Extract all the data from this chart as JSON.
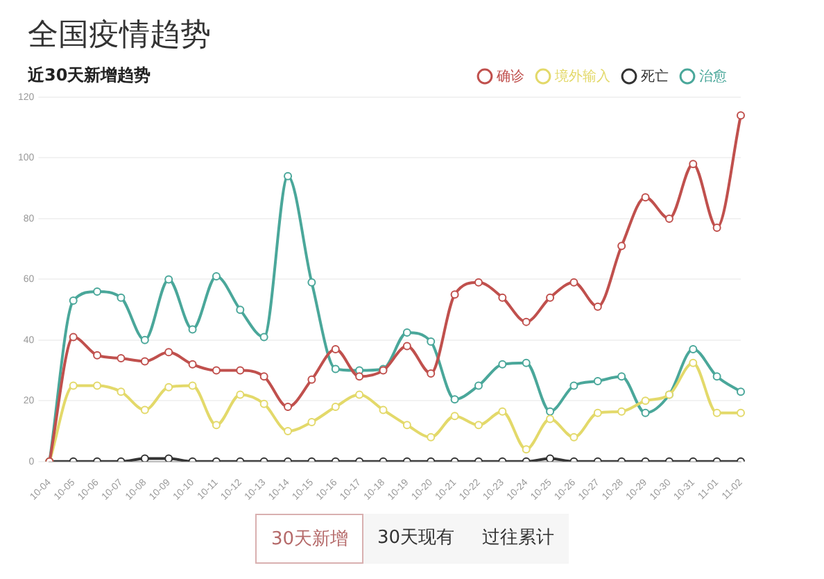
{
  "chart_data": {
    "type": "line",
    "title": "全国疫情趋势",
    "subtitle": "近30天新增趋势",
    "categories": [
      "10-04",
      "10-05",
      "10-06",
      "10-07",
      "10-08",
      "10-09",
      "10-10",
      "10-11",
      "10-12",
      "10-13",
      "10-14",
      "10-15",
      "10-16",
      "10-17",
      "10-18",
      "10-19",
      "10-20",
      "10-21",
      "10-22",
      "10-23",
      "10-24",
      "10-25",
      "10-26",
      "10-27",
      "10-28",
      "10-29",
      "10-30",
      "10-31",
      "11-01",
      "11-02"
    ],
    "series": [
      {
        "name": "确诊",
        "color": "#c0504d",
        "values": [
          0,
          41,
          35,
          34,
          33,
          36,
          32,
          30,
          30,
          28,
          18,
          27,
          37,
          28,
          30,
          38,
          29,
          55,
          59,
          54,
          46,
          54,
          59,
          51,
          71,
          87,
          80,
          98,
          77,
          114
        ]
      },
      {
        "name": "境外输入",
        "color": "#e3d96a",
        "values": [
          0,
          25,
          25,
          23,
          17,
          24.5,
          25,
          12,
          22,
          19,
          10,
          13,
          18,
          22,
          17,
          12,
          8,
          15,
          12,
          16.5,
          4,
          14,
          8,
          16,
          16.5,
          20,
          22,
          32.5,
          16,
          16
        ]
      },
      {
        "name": "死亡",
        "color": "#333333",
        "values": [
          0,
          0,
          0,
          0,
          1,
          1,
          0,
          0,
          0,
          0,
          0,
          0,
          0,
          0,
          0,
          0,
          0,
          0,
          0,
          0,
          0,
          1,
          0,
          0,
          0,
          0,
          0,
          0,
          0,
          0
        ]
      },
      {
        "name": "治愈",
        "color": "#4aa79a",
        "values": [
          0,
          53,
          56,
          54,
          40,
          60,
          43.5,
          61,
          50,
          41,
          94,
          59,
          30.5,
          30,
          30.5,
          42.5,
          39.5,
          20.5,
          25,
          32,
          32.5,
          16.5,
          25,
          26.5,
          28,
          16,
          22,
          37,
          28,
          23
        ]
      }
    ],
    "ylim": [
      0,
      120
    ],
    "yticks": [
      0,
      20,
      40,
      60,
      80,
      100,
      120
    ],
    "grid": "y",
    "legend": "top right",
    "marker": "circle",
    "line_style": "solid",
    "annotations": [
      "30天新增",
      "30天现有",
      "过往累计"
    ]
  }
}
